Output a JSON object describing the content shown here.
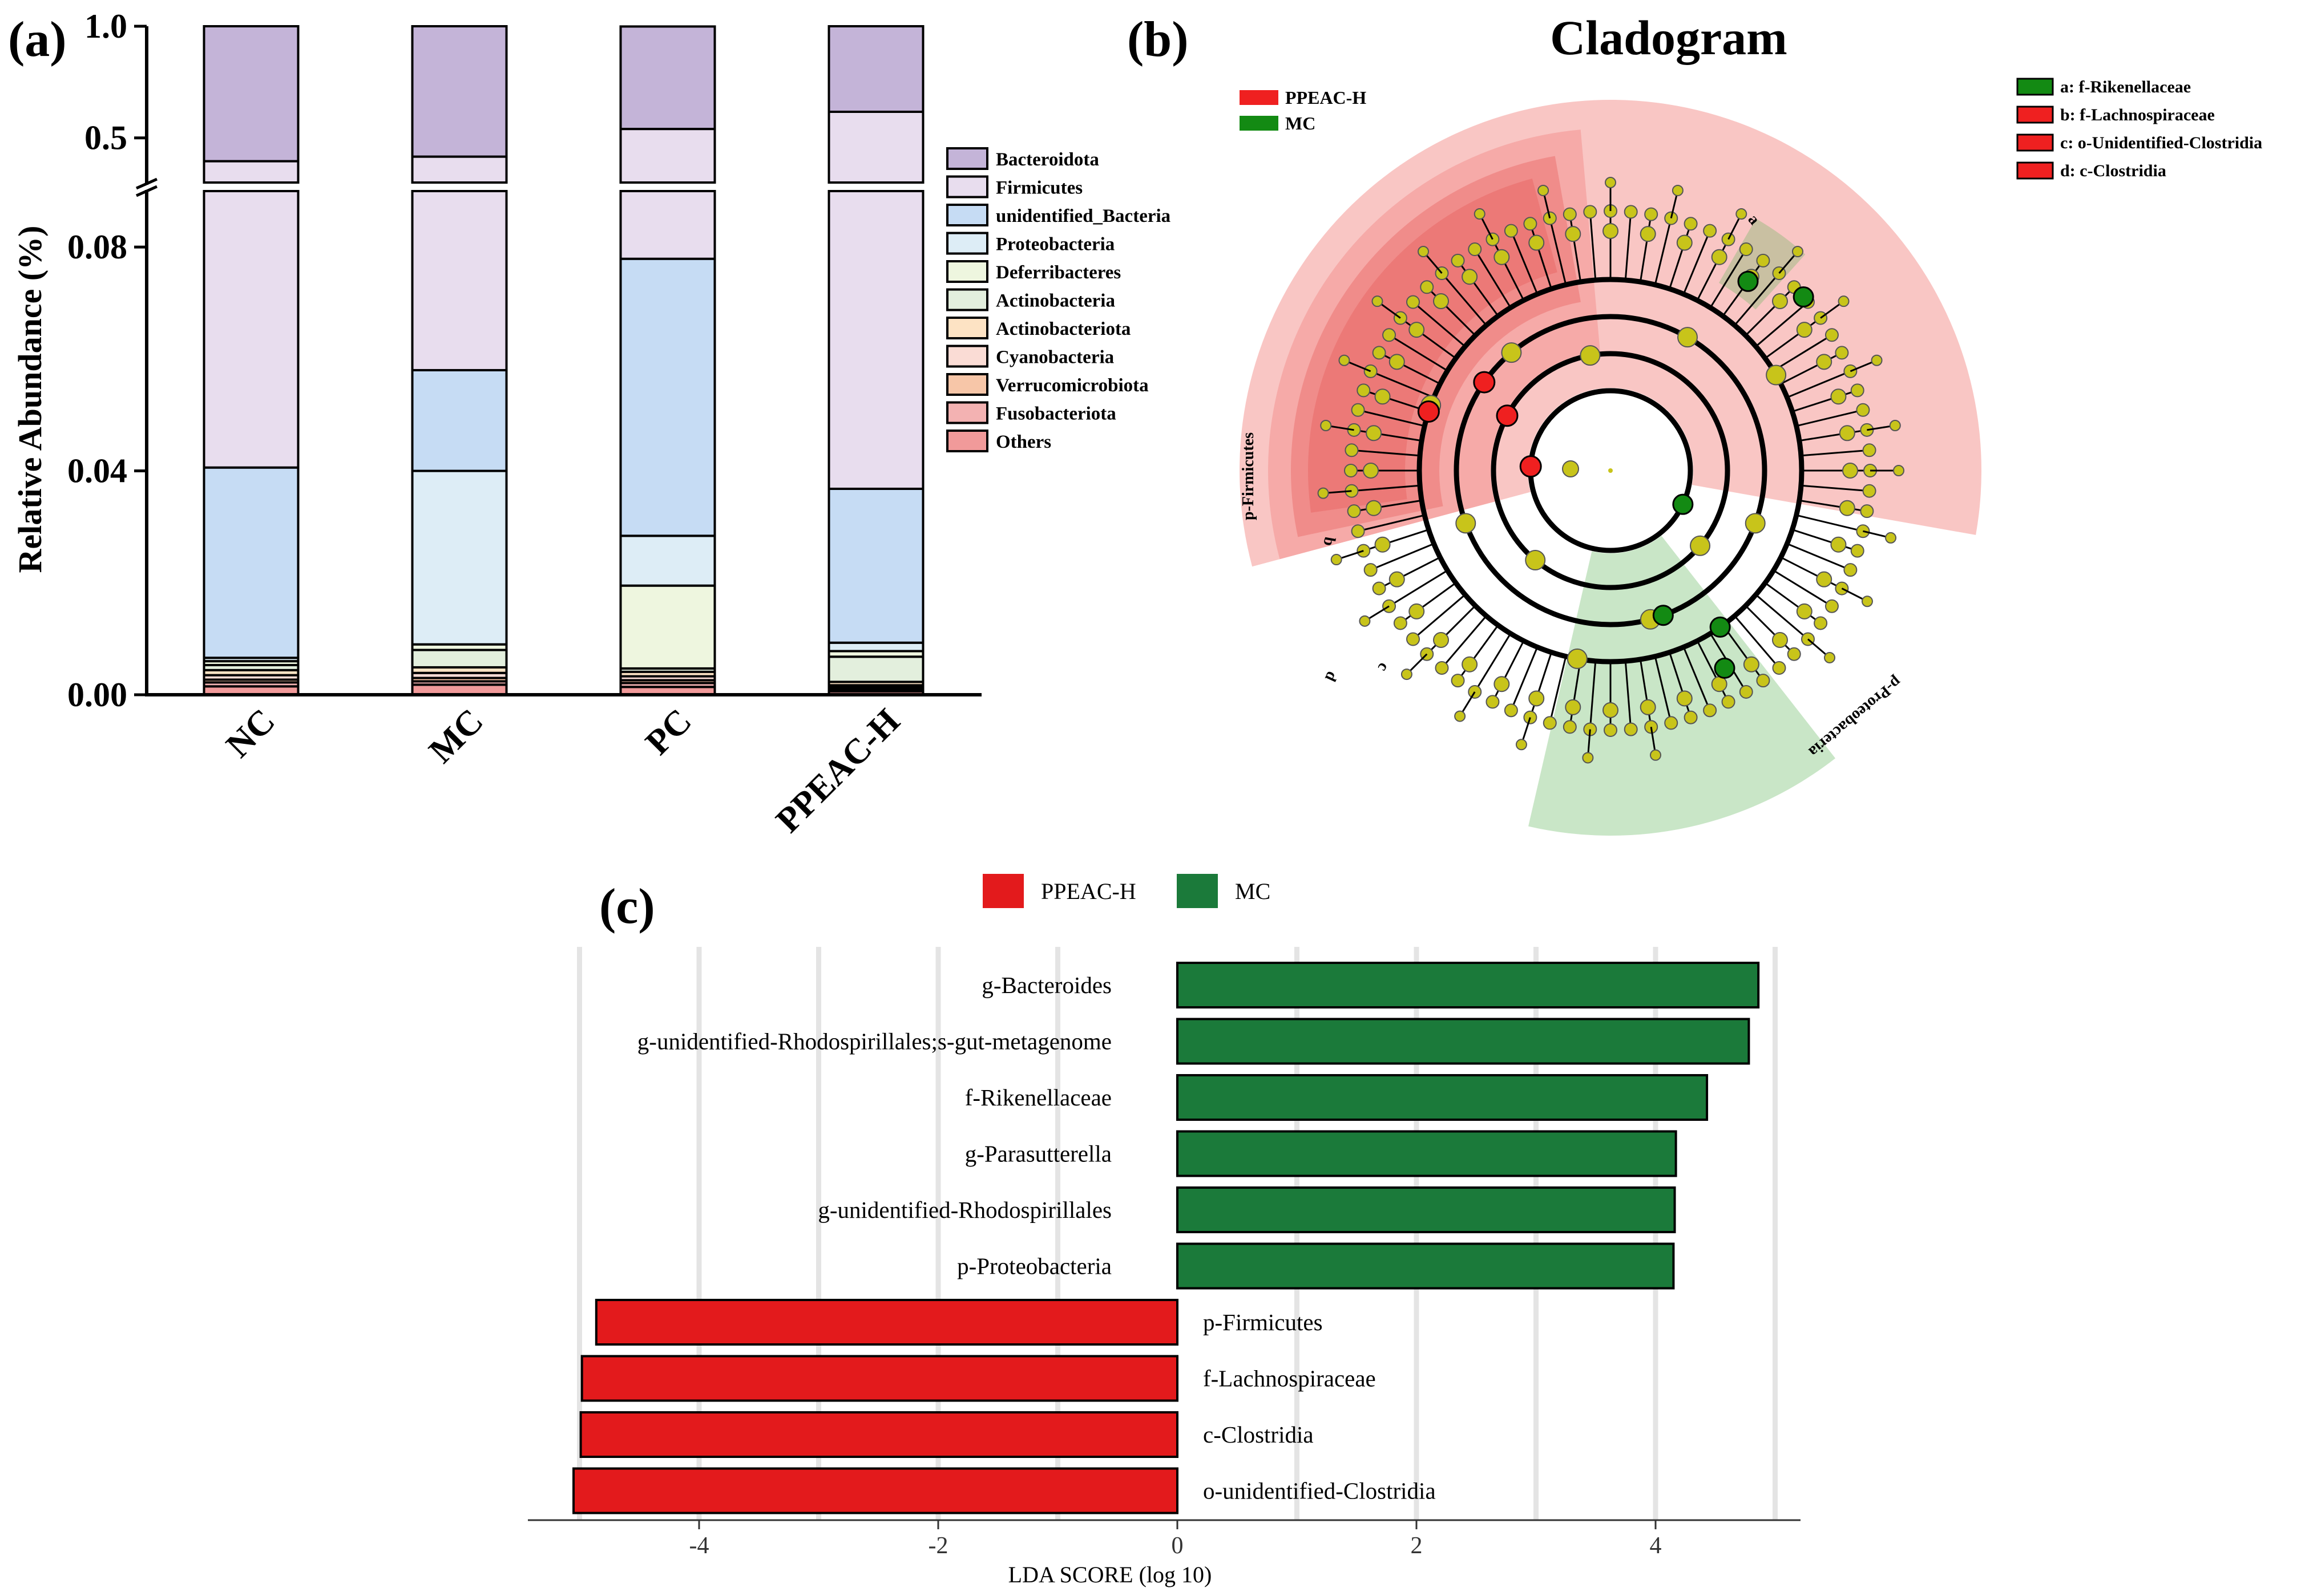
{
  "panels": {
    "a_label": "(a)",
    "b_label": "(b)",
    "c_label": "(c)"
  },
  "chart_data": [
    {
      "type": "bar",
      "subtype": "stacked-bar-broken-axis",
      "title": "",
      "ylabel": "Relative Abundance (%)",
      "xlabel": "",
      "categories": [
        "NC",
        "MC",
        "PC",
        "PPEAC-H"
      ],
      "ylim_lower": [
        0,
        0.09
      ],
      "ylim_upper": [
        0.3,
        1.0
      ],
      "y_ticks_lower": [
        "0.00",
        "0.04",
        "0.08"
      ],
      "y_ticks_upper": [
        "0.5",
        "1.0"
      ],
      "legend_position": "right",
      "series": [
        {
          "name": "Others",
          "color": "#f19a9a",
          "values": [
            0.0015,
            0.0018,
            0.0014,
            0.0006
          ]
        },
        {
          "name": "Fusobacteriota",
          "color": "#f3b2b2",
          "values": [
            0.0007,
            0.0006,
            0.0007,
            0.0004
          ]
        },
        {
          "name": "Verrucomicrobiota",
          "color": "#f7c6a8",
          "values": [
            0.0005,
            0.0006,
            0.0005,
            0.0003
          ]
        },
        {
          "name": "Cyanobacteria",
          "color": "#fadcd5",
          "values": [
            0.0008,
            0.0009,
            0.0007,
            0.0004
          ]
        },
        {
          "name": "Actinobacteriota",
          "color": "#fde3c4",
          "values": [
            0.0009,
            0.001,
            0.0008,
            0.0006
          ]
        },
        {
          "name": "Actinobacteria",
          "color": "#e3efdd",
          "values": [
            0.0009,
            0.0031,
            0.0006,
            0.0045
          ]
        },
        {
          "name": "Deferribacteres",
          "color": "#eef6df",
          "values": [
            0.0007,
            0.001,
            0.0148,
            0.001
          ]
        },
        {
          "name": "Proteobacteria",
          "color": "#ddedf6",
          "values": [
            0.0006,
            0.031,
            0.0089,
            0.0015
          ]
        },
        {
          "name": "unidentified_Bacteria",
          "color": "#c6dcf4",
          "values": [
            0.034,
            0.018,
            0.0495,
            0.0275
          ]
        },
        {
          "name": "Firmicutes",
          "color": "#e8ddee",
          "values": [
            0.355,
            0.358,
            0.462,
            0.58
          ]
        },
        {
          "name": "Bacteroidota",
          "color": "#c4b4d8",
          "values": [
            0.605,
            0.584,
            0.459,
            0.384
          ]
        }
      ],
      "legend_order": [
        "Bacteroidota",
        "Firmicutes",
        "unidentified_Bacteria",
        "Proteobacteria",
        "Deferribacteres",
        "Actinobacteria",
        "Actinobacteriota",
        "Cyanobacteria",
        "Verrucomicrobiota",
        "Fusobacteriota",
        "Others"
      ]
    },
    {
      "type": "cladogram",
      "title": "Cladogram",
      "legend_groups": [
        {
          "name": "PPEAC-H",
          "color": "#ef2020"
        },
        {
          "name": "MC",
          "color": "#138a13"
        }
      ],
      "legend_taxa": [
        {
          "key": "a",
          "name": "a: f-Rikenellaceae",
          "color": "#138a13"
        },
        {
          "key": "b",
          "name": "b: f-Lachnospiraceae",
          "color": "#ef2020"
        },
        {
          "key": "c",
          "name": "c: o-Unidentified-Clostridia",
          "color": "#ef2020"
        },
        {
          "key": "d",
          "name": "d: c-Clostridia",
          "color": "#ef2020"
        }
      ],
      "clade_labels": [
        "p-Firmicutes",
        "p-Proteobacteria",
        "a",
        "b",
        "c",
        "d"
      ],
      "node_color": "#c8c41a",
      "mc_color": "#138a13",
      "ppeac_color": "#ef2020"
    },
    {
      "type": "bar",
      "subtype": "horizontal-diverging",
      "title": "",
      "xlabel": "LDA SCORE (log 10)",
      "ylabel": "",
      "xlim": [
        -5.3,
        5.3
      ],
      "x_ticks": [
        -4,
        -2,
        0,
        2,
        4
      ],
      "x_tick_labels": [
        "-4",
        "-2",
        "0",
        "2",
        "4"
      ],
      "grid_lines": [
        -5,
        -4,
        -3,
        -2,
        -1,
        1,
        2,
        3,
        4,
        5
      ],
      "legend_position": "top",
      "series": [
        {
          "name": "PPEAC-H",
          "color": "#e31a1c"
        },
        {
          "name": "MC",
          "color": "#1b7a3a"
        }
      ],
      "categories": [
        "g-Bacteroides",
        "g-unidentified-Rhodospirillales;s-gut-metagenome",
        "f-Rikenellaceae",
        "g-Parasutterella",
        "g-unidentified-Rhodospirillales",
        "p-Proteobacteria",
        "p-Firmicutes",
        "f-Lachnospiraceae",
        "c-Clostridia",
        "o-unidentified-Clostridia"
      ],
      "values": [
        4.86,
        4.78,
        4.43,
        4.17,
        4.16,
        4.15,
        -4.86,
        -4.98,
        -4.99,
        -5.05
      ],
      "groups": [
        "MC",
        "MC",
        "MC",
        "MC",
        "MC",
        "MC",
        "PPEAC-H",
        "PPEAC-H",
        "PPEAC-H",
        "PPEAC-H"
      ]
    }
  ]
}
